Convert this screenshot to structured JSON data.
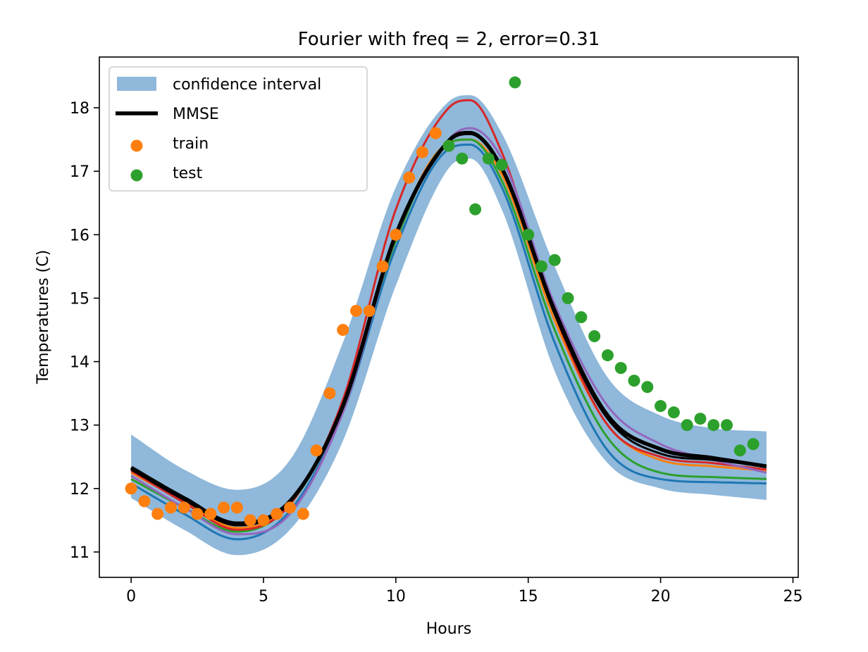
{
  "chart_data": {
    "type": "line",
    "title": "Fourier with freq = 2, error=0.31",
    "xlabel": "Hours",
    "ylabel": "Temperatures (C)",
    "xlim": [
      -1.2,
      25.2
    ],
    "ylim": [
      10.6,
      18.8
    ],
    "xticks": [
      0,
      5,
      10,
      15,
      20,
      25
    ],
    "yticks": [
      11,
      12,
      13,
      14,
      15,
      16,
      17,
      18
    ],
    "grid": false,
    "legend_position": "top-left",
    "legend": [
      {
        "label": "confidence interval",
        "kind": "band",
        "color": "#8fb8da"
      },
      {
        "label": "MMSE",
        "kind": "line",
        "color": "#000000"
      },
      {
        "label": "train",
        "kind": "marker",
        "color": "#ff7f0e"
      },
      {
        "label": "test",
        "kind": "marker",
        "color": "#2ca02c"
      }
    ],
    "confidence_interval": {
      "color": "#8fb8da",
      "x": [
        0,
        2,
        4,
        6,
        8,
        10,
        12,
        12.8,
        14,
        16,
        18,
        20,
        22,
        24
      ],
      "lower": [
        11.85,
        11.35,
        10.95,
        11.35,
        12.75,
        15.2,
        17.05,
        17.2,
        16.4,
        13.85,
        12.4,
        12.0,
        11.9,
        11.82
      ],
      "upper": [
        12.85,
        12.3,
        11.98,
        12.45,
        14.3,
        16.75,
        18.1,
        18.2,
        17.6,
        15.5,
        13.75,
        13.15,
        12.95,
        12.9
      ]
    },
    "sample_curves": [
      {
        "color": "#1f77b4",
        "x": [
          0,
          2,
          4,
          6,
          8,
          10,
          12,
          12.8,
          14,
          16,
          18,
          20,
          22,
          24
        ],
        "y": [
          12.08,
          11.6,
          11.2,
          11.65,
          13.2,
          15.8,
          17.35,
          17.42,
          16.75,
          14.3,
          12.6,
          12.15,
          12.1,
          12.08
        ]
      },
      {
        "color": "#ff7f0e",
        "x": [
          0,
          2,
          4,
          6,
          8,
          10,
          12,
          12.8,
          14,
          16,
          18,
          20,
          22,
          24
        ],
        "y": [
          12.25,
          11.8,
          11.38,
          11.75,
          13.35,
          16.0,
          17.45,
          17.5,
          16.95,
          14.65,
          13.0,
          12.45,
          12.35,
          12.28
        ]
      },
      {
        "color": "#2ca02c",
        "x": [
          0,
          2,
          4,
          6,
          8,
          10,
          12,
          12.8,
          14,
          16,
          18,
          20,
          22,
          24
        ],
        "y": [
          12.15,
          11.7,
          11.32,
          11.75,
          13.3,
          15.9,
          17.45,
          17.5,
          16.85,
          14.5,
          12.8,
          12.25,
          12.18,
          12.15
        ]
      },
      {
        "color": "#d62728",
        "x": [
          0,
          2,
          4,
          6,
          8,
          10,
          12,
          12.8,
          14,
          16,
          18,
          20,
          22,
          24
        ],
        "y": [
          12.28,
          11.78,
          11.35,
          11.75,
          13.4,
          16.4,
          18.0,
          18.12,
          17.3,
          14.75,
          13.0,
          12.5,
          12.4,
          12.3
        ]
      },
      {
        "color": "#9467bd",
        "x": [
          0,
          2,
          4,
          6,
          8,
          10,
          12,
          12.8,
          14,
          16,
          18,
          20,
          22,
          24
        ],
        "y": [
          12.2,
          11.7,
          11.28,
          11.6,
          13.2,
          15.95,
          17.5,
          17.68,
          17.2,
          14.9,
          13.3,
          12.7,
          12.45,
          12.25
        ]
      },
      {
        "color": "#000000",
        "x": [
          0,
          2,
          4,
          6,
          8,
          10,
          12,
          12.8,
          14,
          16,
          18,
          20,
          22,
          24
        ],
        "y": [
          12.3,
          11.82,
          11.42,
          11.78,
          13.3,
          16.0,
          17.5,
          17.62,
          17.05,
          14.75,
          13.1,
          12.55,
          12.45,
          12.35
        ]
      }
    ],
    "mmse": {
      "color": "#000000",
      "x": [
        0,
        2,
        4,
        6,
        8,
        10,
        12,
        12.8,
        14,
        16,
        18,
        20,
        22,
        24
      ],
      "y": [
        12.33,
        11.85,
        11.45,
        11.8,
        13.3,
        16.0,
        17.48,
        17.6,
        17.05,
        14.8,
        13.15,
        12.62,
        12.48,
        12.35
      ]
    },
    "train": {
      "color": "#ff7f0e",
      "x": [
        0,
        0.5,
        1,
        1.5,
        2,
        2.5,
        3,
        3.5,
        4,
        4.5,
        5,
        5.5,
        6,
        6.5,
        7,
        7.5,
        8,
        8.5,
        9,
        9.5,
        10,
        10.5,
        11,
        11.5,
        12
      ],
      "y": [
        12.0,
        11.8,
        11.6,
        11.7,
        11.7,
        11.6,
        11.6,
        11.7,
        11.7,
        11.5,
        11.5,
        11.6,
        11.7,
        11.6,
        12.6,
        13.5,
        14.5,
        14.8,
        14.8,
        15.5,
        16.0,
        16.9,
        17.3,
        17.6,
        17.4
      ]
    },
    "test": {
      "color": "#2ca02c",
      "x": [
        12,
        12.5,
        13,
        13.5,
        14,
        14.5,
        15,
        15.5,
        16,
        16.5,
        17,
        17.5,
        18,
        18.5,
        19,
        19.5,
        20,
        20.5,
        21,
        21.5,
        22,
        22.5,
        23,
        23.5
      ],
      "y": [
        17.4,
        17.2,
        16.4,
        17.2,
        17.1,
        18.4,
        16.0,
        15.5,
        15.6,
        15.0,
        14.7,
        14.4,
        14.1,
        13.9,
        13.7,
        13.6,
        13.3,
        13.2,
        13.0,
        13.1,
        13.0,
        13.0,
        12.6,
        12.7
      ]
    }
  }
}
